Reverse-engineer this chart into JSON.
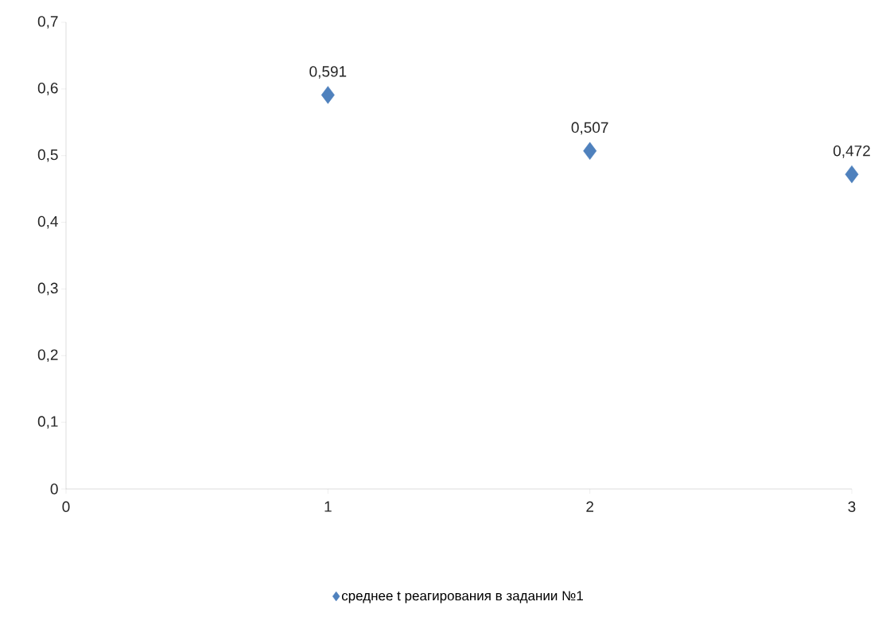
{
  "chart_data": {
    "type": "scatter",
    "x": [
      1,
      2,
      3
    ],
    "series": [
      {
        "name": "среднее t реагирования в задании №1",
        "color": "#4f81bd",
        "values": [
          0.591,
          0.507,
          0.472
        ],
        "value_labels": [
          "0,591",
          "0,507",
          "0,472"
        ]
      }
    ],
    "xlim": [
      0,
      3
    ],
    "xticks": [
      0,
      1,
      2,
      3
    ],
    "ylim": [
      0,
      0.7
    ],
    "yticks": [
      0,
      {
        "value": 0.1,
        "label": "0,1"
      },
      {
        "value": 0.2,
        "label": "0,2"
      },
      {
        "value": 0.3,
        "label": "0,3"
      },
      {
        "value": 0.4,
        "label": "0,4"
      },
      {
        "value": 0.5,
        "label": "0,5"
      },
      {
        "value": 0.6,
        "label": "0,6"
      },
      {
        "value": 0.7,
        "label": "0,7"
      }
    ],
    "marker": "diamond",
    "legend": "bottom",
    "grid": false
  }
}
